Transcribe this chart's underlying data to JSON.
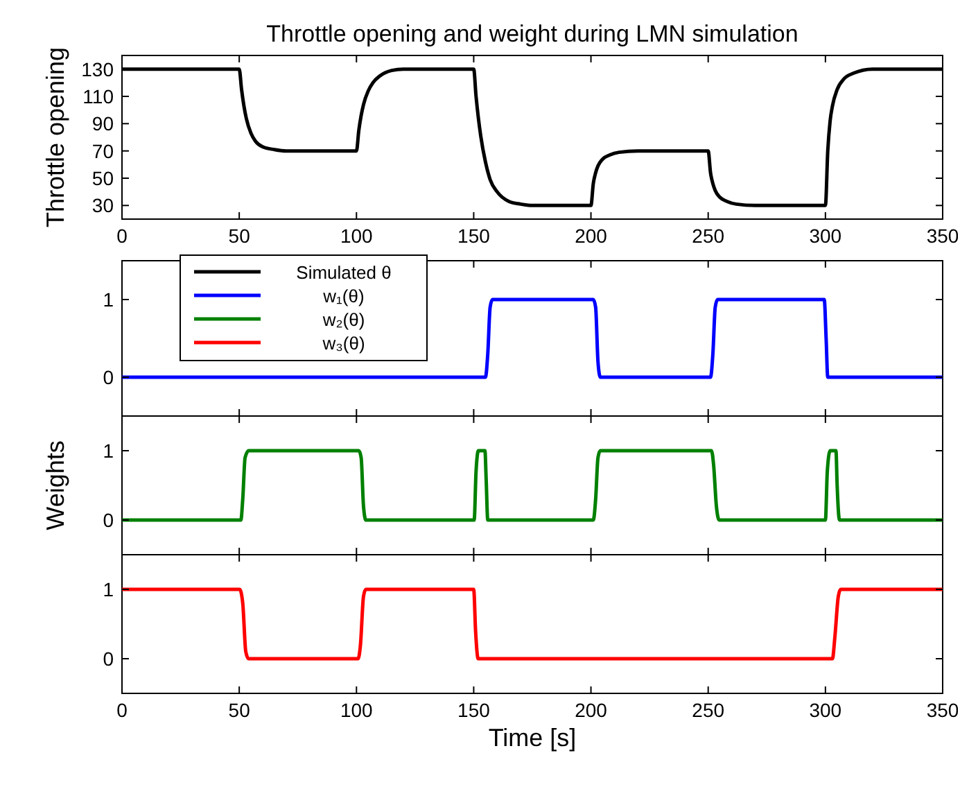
{
  "chart_data": [
    {
      "type": "line",
      "title": "Throttle opening and weight during LMN simulation",
      "ylabel": "Throttle opening",
      "xlim": [
        0,
        350
      ],
      "xticks": [
        0,
        50,
        100,
        150,
        200,
        250,
        300,
        350
      ],
      "ylim": [
        20,
        140
      ],
      "yticks": [
        30,
        50,
        70,
        90,
        110,
        130
      ],
      "legend": "bottom left",
      "series": [
        {
          "name": "Simulated θ",
          "color": "#000000",
          "x": [
            0,
            50,
            51,
            52,
            53,
            55,
            57,
            60,
            65,
            70,
            100,
            101,
            102,
            103,
            105,
            107,
            110,
            115,
            120,
            150,
            151,
            152,
            153,
            155,
            157,
            160,
            165,
            170,
            175,
            200,
            201,
            202,
            203,
            205,
            208,
            212,
            220,
            250,
            251,
            252,
            253,
            255,
            258,
            262,
            270,
            300,
            301,
            302,
            303,
            305,
            308,
            312,
            320,
            350
          ],
          "values": [
            130,
            130,
            115,
            103,
            94,
            83,
            77,
            73,
            71,
            70,
            70,
            85,
            96,
            104,
            114,
            120,
            125,
            129,
            130,
            130,
            110,
            94,
            81,
            62,
            49,
            40,
            33,
            31,
            30,
            30,
            46,
            54,
            59,
            64,
            67,
            69,
            70,
            70,
            54,
            46,
            41,
            36,
            33,
            31,
            30,
            30,
            70,
            92,
            103,
            115,
            123,
            127,
            130,
            130
          ]
        }
      ]
    },
    {
      "type": "line",
      "xlim": [
        0,
        350
      ],
      "xticks": [
        0,
        50,
        100,
        150,
        200,
        250,
        300,
        350
      ],
      "ylim": [
        -0.5,
        1.5
      ],
      "yticks": [
        0,
        1
      ],
      "tick_labels": "y",
      "series": [
        {
          "name": "w₁(θ)",
          "color": "#0000ff",
          "x": [
            0,
            155,
            156,
            157,
            158,
            201,
            202,
            203,
            204,
            251,
            252,
            253,
            254,
            299.5,
            300.3,
            301,
            350
          ],
          "values": [
            0,
            0,
            0.3,
            0.9,
            1,
            1,
            0.9,
            0.2,
            0,
            0,
            0.3,
            0.9,
            1,
            1,
            0.5,
            0,
            0
          ]
        }
      ]
    },
    {
      "type": "line",
      "ylabel": "Weights",
      "xlim": [
        0,
        350
      ],
      "xticks": [
        0,
        50,
        100,
        150,
        200,
        250,
        300,
        350
      ],
      "ylim": [
        -0.5,
        1.5
      ],
      "yticks": [
        0,
        1
      ],
      "tick_labels": "y",
      "series": [
        {
          "name": "w₂(θ)",
          "color": "#008000",
          "x": [
            0,
            50.7,
            51.5,
            52.5,
            54,
            101,
            102,
            103,
            104,
            150.2,
            151,
            152,
            154.8,
            155.3,
            156,
            201,
            202,
            203,
            204,
            251.4,
            252.3,
            253.5,
            254.7,
            300,
            300.8,
            302,
            304.5,
            305,
            306,
            350
          ],
          "values": [
            0,
            0,
            0.3,
            0.9,
            1,
            1,
            0.9,
            0.2,
            0,
            0,
            0.7,
            1,
            1,
            0.6,
            0,
            0,
            0.3,
            0.9,
            1,
            1,
            0.8,
            0.2,
            0,
            0,
            0.7,
            1,
            1,
            0.5,
            0,
            0
          ]
        }
      ]
    },
    {
      "type": "line",
      "xlabel": "Time [s]",
      "xlim": [
        0,
        350
      ],
      "xticks": [
        0,
        50,
        100,
        150,
        200,
        250,
        300,
        350
      ],
      "ylim": [
        -0.5,
        1.5
      ],
      "yticks": [
        0,
        1
      ],
      "series": [
        {
          "name": "w₃(θ)",
          "color": "#ff0000",
          "x": [
            0,
            50.2,
            51.5,
            52.8,
            54,
            100.7,
            101.7,
            103,
            104,
            150,
            150.8,
            151.9,
            303,
            304,
            305.5,
            306.5,
            350
          ],
          "values": [
            1,
            1,
            0.8,
            0.1,
            0,
            0,
            0.2,
            0.9,
            1,
            1,
            0.4,
            0,
            0,
            0.3,
            0.9,
            1,
            1
          ]
        }
      ]
    }
  ]
}
